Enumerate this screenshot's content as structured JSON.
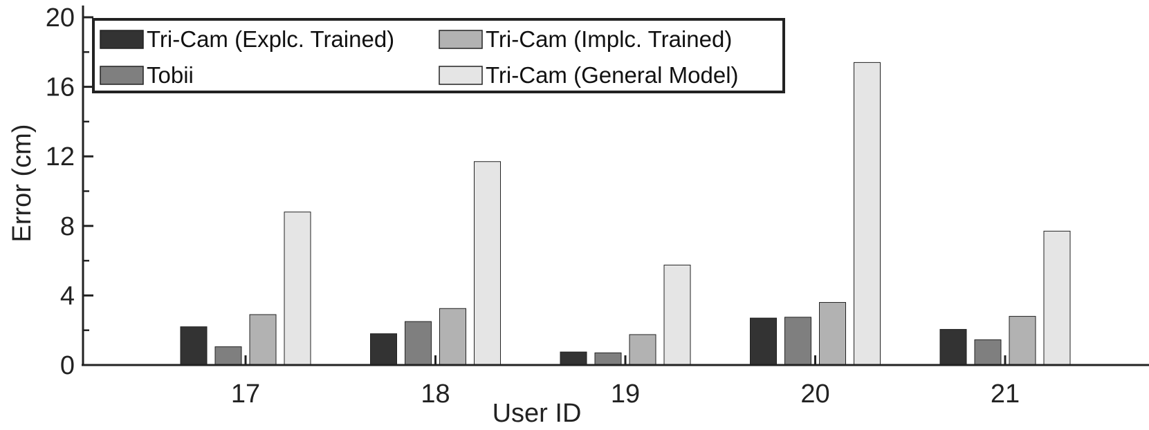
{
  "chart_data": {
    "type": "bar",
    "title": "",
    "xlabel": "User ID",
    "ylabel": "Error (cm)",
    "ylim": [
      0,
      20
    ],
    "yticks": [
      0,
      4,
      8,
      12,
      16,
      20
    ],
    "categories": [
      "17",
      "18",
      "19",
      "20",
      "21"
    ],
    "series": [
      {
        "name": "Tri-Cam (Explc. Trained)",
        "color": "#333333",
        "values": [
          2.2,
          1.8,
          0.75,
          2.7,
          2.05
        ]
      },
      {
        "name": "Tobii",
        "color": "#7f7f7f",
        "values": [
          1.05,
          2.5,
          0.7,
          2.75,
          1.45
        ]
      },
      {
        "name": "Tri-Cam (Implc. Trained)",
        "color": "#b2b2b2",
        "values": [
          2.9,
          3.25,
          1.75,
          3.6,
          2.8
        ]
      },
      {
        "name": "Tri-Cam (General Model)",
        "color": "#e5e5e5",
        "values": [
          8.8,
          11.7,
          5.75,
          17.4,
          7.7
        ]
      }
    ],
    "legend": {
      "location": "top-left",
      "columns": 2
    }
  }
}
